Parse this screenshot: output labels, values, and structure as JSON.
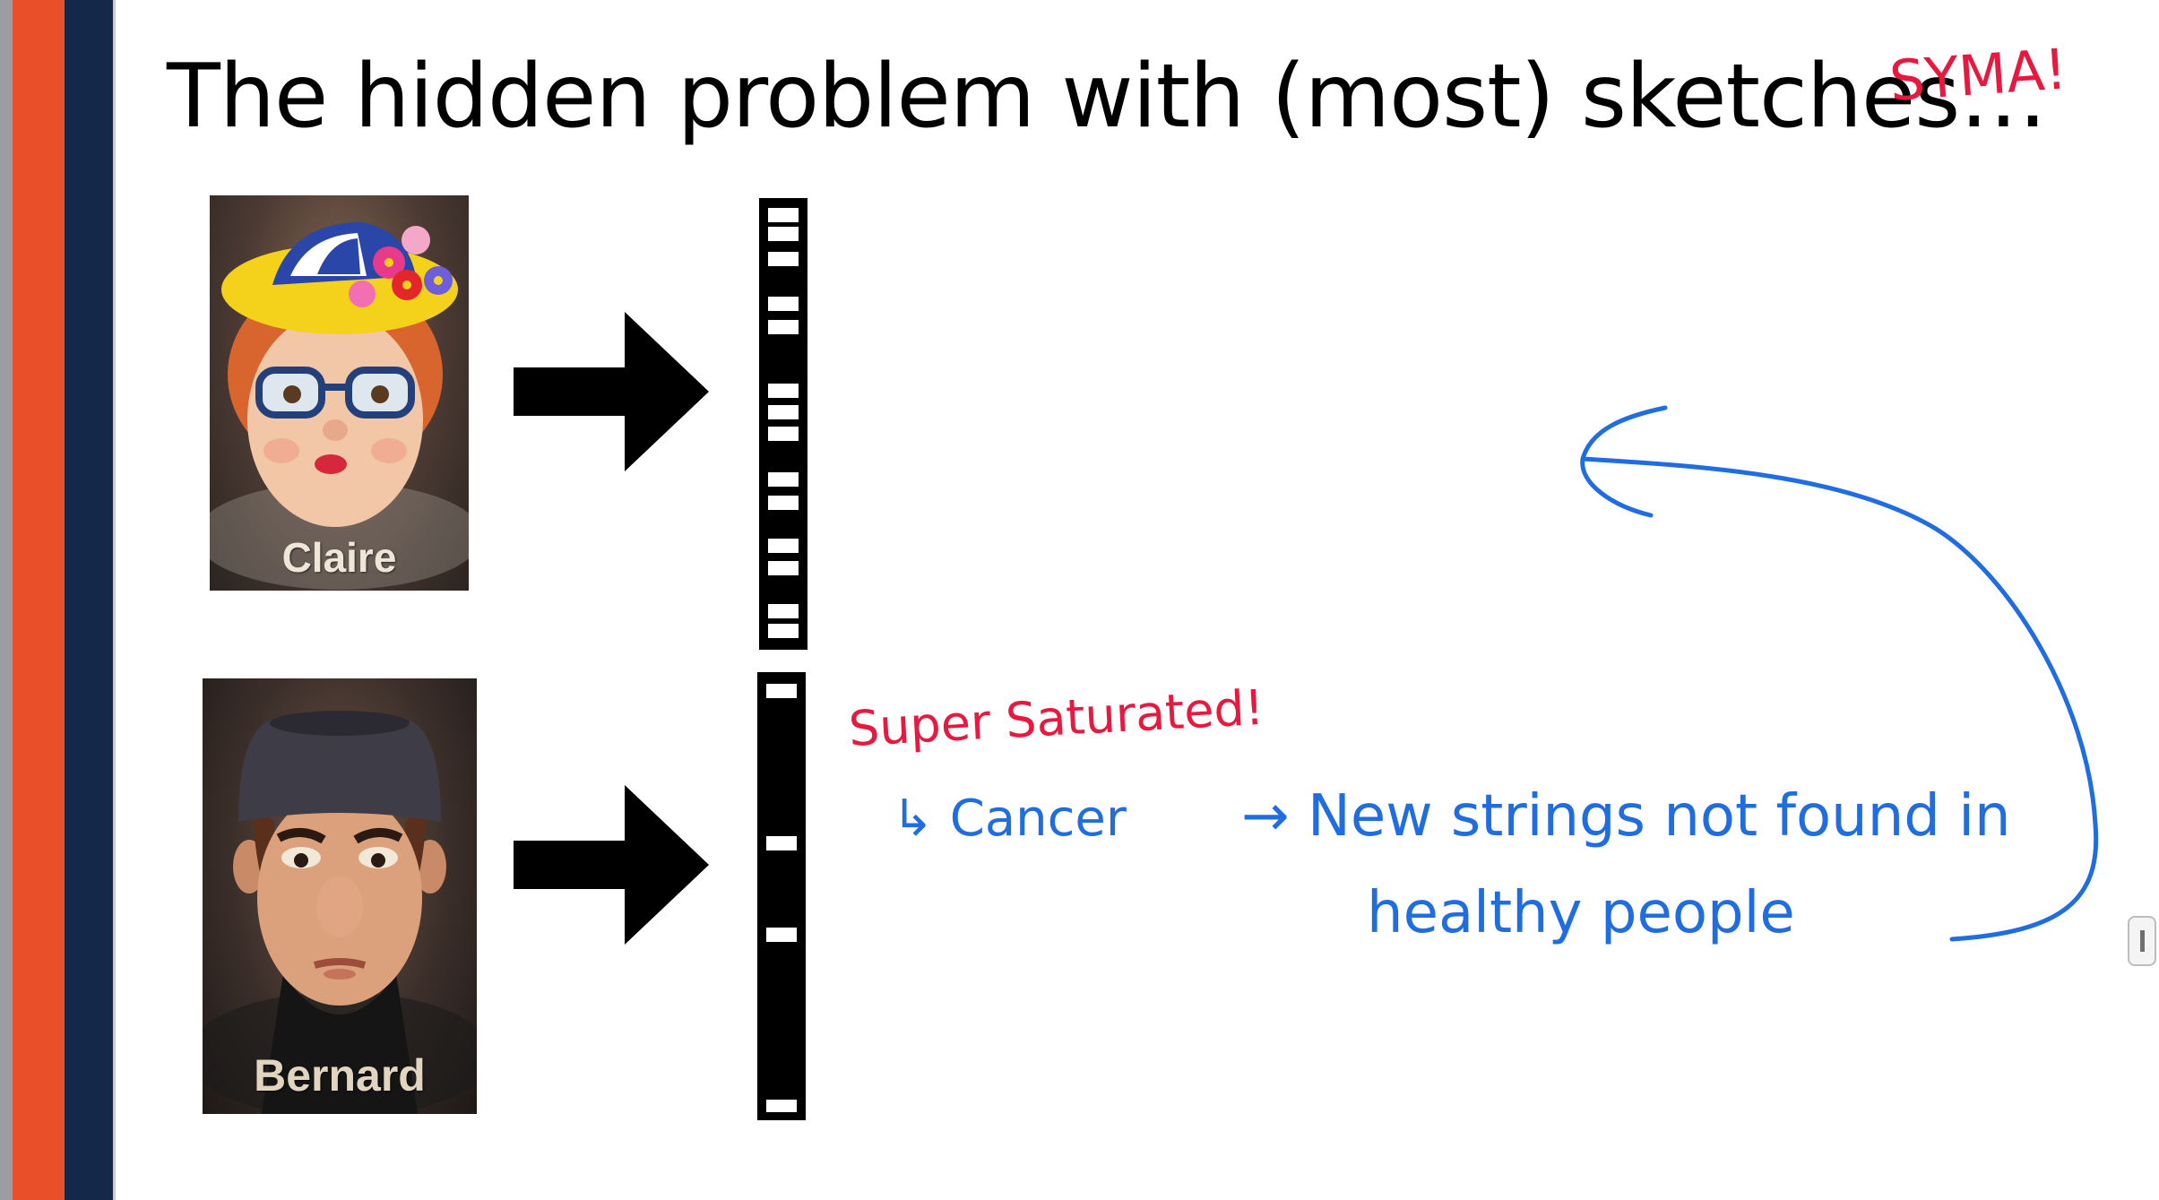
{
  "slide": {
    "title": "The hidden problem with (most) sketches…"
  },
  "cards": {
    "claire": {
      "name": "Claire"
    },
    "bernard": {
      "name": "Bernard"
    }
  },
  "annotations": {
    "top_right": "SYMA!",
    "super_saturated": "Super Saturated!",
    "cancer": "↳ Cancer",
    "new_strings_line1": "→ New strings not found in",
    "new_strings_line2": "healthy people"
  },
  "colors": {
    "orange_stripe": "#e9502a",
    "navy_stripe": "#14294a",
    "red_ink": "#e8193f",
    "blue_ink": "#1f6de0"
  }
}
